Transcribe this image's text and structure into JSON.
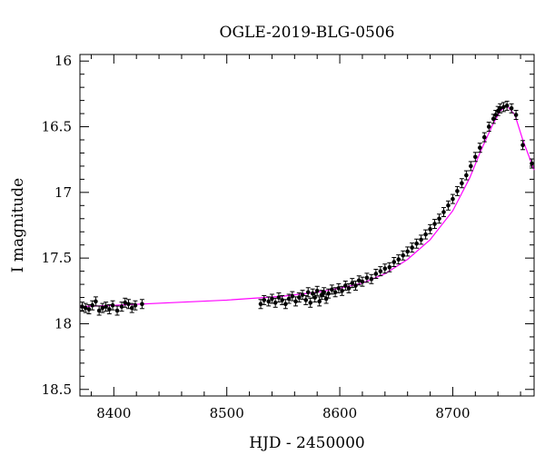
{
  "chart_data": {
    "type": "scatter",
    "title": "OGLE-2019-BLG-0506",
    "xlabel": "HJD - 2450000",
    "ylabel": "I magnitude",
    "xlim": [
      8370,
      8772
    ],
    "ylim": [
      18.55,
      15.95
    ],
    "y_inverted": true,
    "grid": false,
    "x_ticks": [
      8400,
      8500,
      8600,
      8700
    ],
    "x_tick_labels": [
      "8400",
      "8500",
      "8600",
      "8700"
    ],
    "y_ticks": [
      16,
      16.5,
      17,
      17.5,
      18,
      18.5
    ],
    "y_tick_labels": [
      "16",
      "16.5",
      "17",
      "17.5",
      "18",
      "18.5"
    ],
    "colors": {
      "points": "#000000",
      "model": "#ff00ff",
      "axes": "#000000"
    },
    "series": [
      {
        "kind": "points",
        "marker": "filled-circle",
        "error_bars": true,
        "x": [
          8372,
          8375,
          8378,
          8381,
          8384,
          8387,
          8390,
          8393,
          8396,
          8399,
          8403,
          8407,
          8410,
          8413,
          8416,
          8419,
          8425,
          8530,
          8533,
          8537,
          8540,
          8543,
          8546,
          8549,
          8552,
          8555,
          8558,
          8561,
          8564,
          8567,
          8570,
          8572,
          8574,
          8576,
          8578,
          8580,
          8582,
          8584,
          8586,
          8588,
          8590,
          8593,
          8596,
          8599,
          8602,
          8605,
          8608,
          8611,
          8614,
          8617,
          8620,
          8624,
          8628,
          8632,
          8636,
          8640,
          8644,
          8648,
          8652,
          8656,
          8660,
          8664,
          8668,
          8672,
          8676,
          8680,
          8684,
          8688,
          8692,
          8696,
          8700,
          8704,
          8708,
          8712,
          8716,
          8720,
          8724,
          8728,
          8732,
          8736,
          8738,
          8740,
          8742,
          8745,
          8748,
          8752,
          8756,
          8762,
          8770
        ],
        "y": [
          17.87,
          17.88,
          17.89,
          17.86,
          17.83,
          17.9,
          17.88,
          17.87,
          17.89,
          17.86,
          17.9,
          17.87,
          17.84,
          17.85,
          17.88,
          17.86,
          17.85,
          17.85,
          17.82,
          17.83,
          17.81,
          17.84,
          17.8,
          17.82,
          17.85,
          17.81,
          17.79,
          17.83,
          17.8,
          17.78,
          17.82,
          17.76,
          17.84,
          17.77,
          17.8,
          17.75,
          17.83,
          17.78,
          17.76,
          17.81,
          17.77,
          17.74,
          17.76,
          17.73,
          17.75,
          17.71,
          17.73,
          17.69,
          17.71,
          17.67,
          17.68,
          17.65,
          17.66,
          17.62,
          17.6,
          17.58,
          17.57,
          17.53,
          17.51,
          17.48,
          17.45,
          17.42,
          17.39,
          17.36,
          17.32,
          17.28,
          17.24,
          17.2,
          17.15,
          17.1,
          17.05,
          16.99,
          16.93,
          16.87,
          16.8,
          16.73,
          16.66,
          16.58,
          16.5,
          16.44,
          16.41,
          16.38,
          16.36,
          16.35,
          16.34,
          16.36,
          16.41,
          16.64,
          16.78
        ]
      },
      {
        "kind": "model-curve",
        "x": [
          8370,
          8400,
          8450,
          8500,
          8550,
          8580,
          8600,
          8620,
          8640,
          8660,
          8680,
          8700,
          8715,
          8725,
          8735,
          8742,
          8748,
          8755,
          8762,
          8772
        ],
        "y": [
          17.87,
          17.86,
          17.84,
          17.82,
          17.79,
          17.76,
          17.73,
          17.69,
          17.62,
          17.51,
          17.36,
          17.14,
          16.89,
          16.68,
          16.49,
          16.38,
          16.34,
          16.41,
          16.6,
          16.83
        ]
      }
    ]
  }
}
